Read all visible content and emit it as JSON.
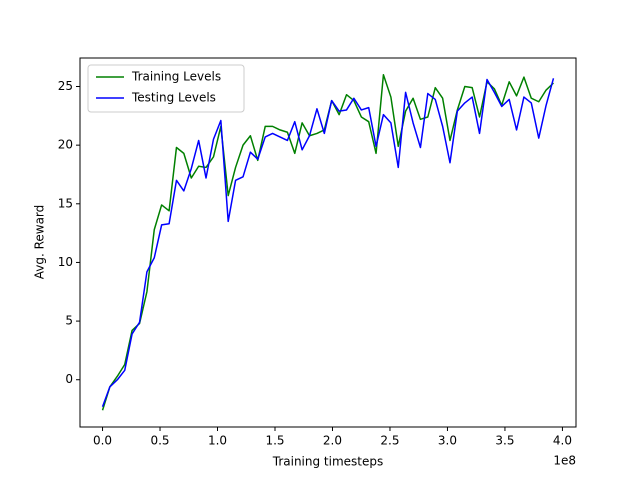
{
  "chart_data": {
    "type": "line",
    "xlabel": "Training timesteps",
    "ylabel": "Avg. Reward",
    "x_offset_label": "1e8",
    "x": [
      0,
      0.064,
      0.129,
      0.193,
      0.257,
      0.322,
      0.386,
      0.45,
      0.514,
      0.579,
      0.643,
      0.707,
      0.772,
      0.836,
      0.9,
      0.965,
      1.029,
      1.093,
      1.157,
      1.222,
      1.286,
      1.35,
      1.415,
      1.479,
      1.543,
      1.608,
      1.672,
      1.736,
      1.8,
      1.865,
      1.929,
      1.993,
      2.058,
      2.122,
      2.186,
      2.251,
      2.315,
      2.379,
      2.443,
      2.508,
      2.572,
      2.636,
      2.701,
      2.765,
      2.829,
      2.894,
      2.958,
      3.022,
      3.086,
      3.151,
      3.215,
      3.279,
      3.344,
      3.408,
      3.472,
      3.537,
      3.601,
      3.665,
      3.729,
      3.794,
      3.858,
      3.922
    ],
    "series": [
      {
        "name": "Training Levels",
        "color": "#008000",
        "values": [
          -2.6,
          -0.6,
          0.3,
          1.3,
          4.2,
          4.8,
          7.5,
          12.8,
          14.9,
          14.4,
          19.8,
          19.3,
          17.2,
          18.2,
          18.1,
          19.0,
          21.6,
          15.7,
          18.1,
          20.0,
          20.8,
          18.7,
          21.6,
          21.6,
          21.3,
          21.1,
          19.3,
          21.9,
          20.8,
          21.0,
          21.3,
          23.8,
          22.6,
          24.3,
          23.8,
          22.4,
          22.0,
          19.3,
          26.0,
          24.1,
          19.9,
          22.9,
          24.0,
          22.2,
          22.4,
          24.9,
          24.0,
          20.4,
          23.0,
          25.0,
          24.9,
          22.4,
          25.4,
          24.8,
          23.4,
          25.4,
          24.2,
          25.8,
          24.0,
          23.7,
          24.7,
          25.3
        ]
      },
      {
        "name": "Testing Levels",
        "color": "#0000ff",
        "values": [
          -2.3,
          -0.6,
          0.0,
          0.8,
          3.9,
          4.9,
          9.2,
          10.4,
          13.2,
          13.3,
          17.0,
          16.1,
          18.0,
          20.4,
          17.2,
          20.5,
          22.1,
          13.5,
          17.0,
          17.3,
          19.4,
          18.8,
          20.7,
          21.0,
          20.7,
          20.4,
          22.0,
          19.6,
          20.8,
          23.1,
          21.0,
          23.8,
          22.9,
          23.0,
          24.0,
          23.0,
          23.2,
          19.9,
          22.6,
          21.9,
          18.1,
          24.5,
          21.9,
          19.8,
          24.4,
          23.9,
          21.6,
          18.5,
          22.9,
          23.6,
          24.1,
          21.0,
          25.6,
          24.5,
          23.3,
          23.9,
          21.3,
          24.1,
          23.6,
          20.6,
          23.4,
          25.7
        ]
      }
    ],
    "xlim": [
      -0.196,
      4.118
    ],
    "ylim": [
      -4.03,
      27.43
    ],
    "xticks": [
      {
        "value": 0,
        "label": "0.0"
      },
      {
        "value": 0.5,
        "label": "0.5"
      },
      {
        "value": 1,
        "label": "1.0"
      },
      {
        "value": 1.5,
        "label": "1.5"
      },
      {
        "value": 2,
        "label": "2.0"
      },
      {
        "value": 2.5,
        "label": "2.5"
      },
      {
        "value": 3,
        "label": "3.0"
      },
      {
        "value": 3.5,
        "label": "3.5"
      },
      {
        "value": 4,
        "label": "4.0"
      }
    ],
    "yticks": [
      0,
      5,
      10,
      15,
      20,
      25
    ],
    "grid": false,
    "legend": "upper left"
  }
}
